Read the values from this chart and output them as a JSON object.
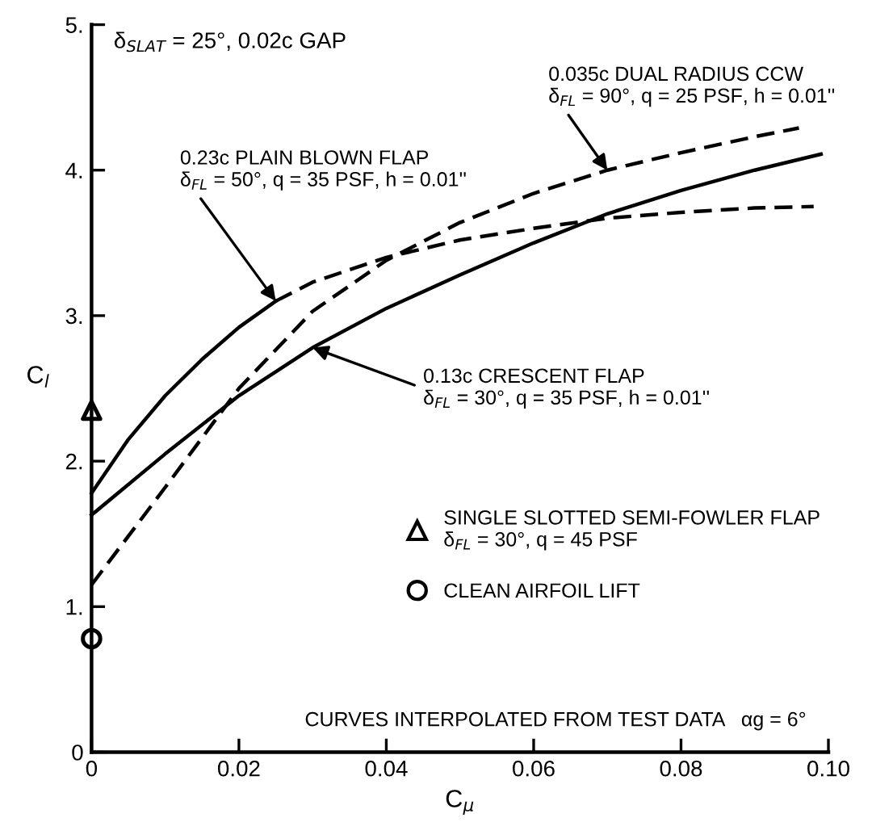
{
  "chart_data": {
    "type": "line",
    "xlabel": "C$_{μ}$",
    "ylabel": "C$_{l}$",
    "xlim": [
      0,
      0.1
    ],
    "ylim": [
      0,
      5
    ],
    "xticks": [
      0,
      0.02,
      0.04,
      0.06,
      0.08,
      {
        "value": 0.1,
        "label": "0.10"
      }
    ],
    "yticks": [
      0,
      {
        "value": 1,
        "label": "1."
      },
      {
        "value": 2,
        "label": "2."
      },
      {
        "value": 3,
        "label": "3."
      },
      {
        "value": 4,
        "label": "4."
      },
      {
        "value": 5,
        "label": "5."
      }
    ],
    "grid": false,
    "legend": "right",
    "series": [
      {
        "line_style": "solid",
        "color": "#000000",
        "x": [
          0,
          0.005,
          0.01,
          0.015,
          0.02,
          0.025
        ],
        "values": [
          1.78,
          2.15,
          2.45,
          2.7,
          2.92,
          3.1
        ]
      },
      {
        "line_style": "dashed",
        "color": "#000000",
        "x": [
          0.025,
          0.03,
          0.04,
          0.05,
          0.06,
          0.07,
          0.08,
          0.09,
          0.098
        ],
        "values": [
          3.1,
          3.23,
          3.4,
          3.52,
          3.6,
          3.67,
          3.71,
          3.74,
          3.75
        ]
      },
      {
        "line_style": "solid",
        "color": "#000000",
        "x": [
          0,
          0.01,
          0.02,
          0.03,
          0.04,
          0.05,
          0.06,
          0.07,
          0.08,
          0.09,
          0.099
        ],
        "values": [
          1.63,
          2.05,
          2.45,
          2.78,
          3.05,
          3.28,
          3.5,
          3.7,
          3.86,
          4.0,
          4.11
        ]
      },
      {
        "line_style": "dashed",
        "color": "#000000",
        "x": [
          0,
          0.01,
          0.02,
          0.03,
          0.04,
          0.05,
          0.06,
          0.07,
          0.08,
          0.09,
          0.096
        ],
        "values": [
          1.15,
          1.82,
          2.5,
          3.03,
          3.38,
          3.64,
          3.84,
          4.0,
          4.12,
          4.23,
          4.29
        ]
      },
      {
        "type": "scatter",
        "marker": "triangle",
        "color": "#000000",
        "name": "SINGLE SLOTTED SEMI-FOWLER FLAP\nδ$_{FL}$ = 30°, q = 45 PSF",
        "x": [
          0
        ],
        "values": [
          2.35
        ]
      },
      {
        "type": "scatter",
        "marker": "circle",
        "color": "#000000",
        "name": "CLEAN AIRFOIL LIFT",
        "x": [
          0
        ],
        "values": [
          0.78
        ]
      }
    ],
    "annotations": [
      "δ$_{SLAT}$ = 25°, 0.02c GAP",
      {
        "text": "0.23c PLAIN BLOWN FLAP\nδ$_{FL}$ = 50°, q = 35 PSF, h = 0.01''",
        "x": 0.025,
        "y": 3.1
      },
      {
        "text": "0.13c CRESCENT FLAP\nδ$_{FL}$ = 30°, q = 35 PSF, h = 0.01''",
        "x": 0.03,
        "y": 2.78
      },
      {
        "text": "0.035c DUAL RADIUS CCW\nδ$_{FL}$ = 90°, q = 25 PSF, h = 0.01''",
        "x": 0.07,
        "y": 4.0
      },
      "CURVES INTERPOLATED FROM TEST DATA   αg = 6°"
    ]
  }
}
